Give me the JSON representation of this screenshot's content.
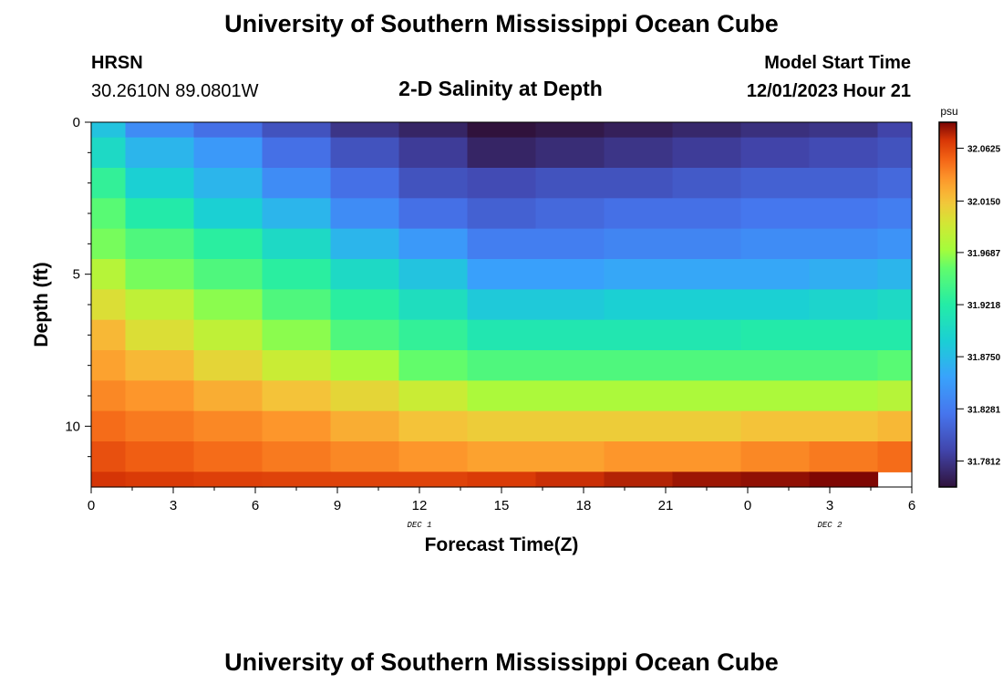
{
  "header": {
    "title": "University of Southern Mississippi Ocean Cube",
    "station": "HRSN",
    "coords": "30.2610N  89.0801W",
    "subtitle": "2-D Salinity at Depth",
    "model_label": "Model Start Time",
    "model_time": "12/01/2023 Hour 21"
  },
  "footer": {
    "title": "University of Southern Mississippi Ocean Cube"
  },
  "chart_data": {
    "type": "heatmap",
    "xlabel": "Forecast Time(Z)",
    "ylabel": "Depth (ft)",
    "x_ticks": [
      "0",
      "3",
      "6",
      "9",
      "12",
      "15",
      "18",
      "21",
      "0",
      "3",
      "6"
    ],
    "y_ticks": [
      "0",
      "5",
      "10"
    ],
    "xlim": [
      0,
      30
    ],
    "ylim": [
      0,
      12
    ],
    "y_inverted": true,
    "date_labels": [
      {
        "text": "DEC 1",
        "x": 12
      },
      {
        "text": "DEC 2",
        "x": 27
      }
    ],
    "colorbar": {
      "unit": "psu",
      "ticks": [
        "32.0625",
        "32.0150",
        "31.9687",
        "31.9218",
        "31.8750",
        "31.8281",
        "31.7812"
      ],
      "tick_values": [
        32.0625,
        32.015,
        31.9687,
        31.9218,
        31.875,
        31.8281,
        31.7812
      ],
      "range": [
        31.7578,
        32.0859
      ]
    },
    "x_edges": [
      0,
      1.25,
      3.75,
      6.25,
      8.75,
      11.25,
      13.75,
      16.25,
      18.75,
      21.25,
      23.75,
      26.25,
      28.75,
      30
    ],
    "depth_edges": [
      0,
      0.5,
      1.5,
      2.5,
      3.5,
      4.5,
      5.5,
      6.5,
      7.5,
      8.5,
      9.5,
      10.5,
      11.5,
      12
    ],
    "values": [
      [
        31.88,
        31.84,
        31.82,
        31.8,
        31.78,
        31.77,
        31.758,
        31.762,
        31.767,
        31.772,
        31.777,
        31.78,
        31.79
      ],
      [
        31.9,
        31.87,
        31.85,
        31.82,
        31.8,
        31.785,
        31.77,
        31.775,
        31.78,
        31.785,
        31.79,
        31.795,
        31.8
      ],
      [
        31.93,
        31.89,
        31.87,
        31.84,
        31.82,
        31.8,
        31.795,
        31.8,
        31.8,
        31.805,
        31.81,
        31.81,
        31.815
      ],
      [
        31.95,
        31.92,
        31.89,
        31.87,
        31.84,
        31.82,
        31.81,
        31.815,
        31.82,
        31.82,
        31.825,
        31.825,
        31.83
      ],
      [
        31.96,
        31.945,
        31.925,
        31.9,
        31.87,
        31.85,
        31.83,
        31.83,
        31.835,
        31.835,
        31.84,
        31.84,
        31.845
      ],
      [
        31.98,
        31.96,
        31.945,
        31.925,
        31.9,
        31.88,
        31.855,
        31.855,
        31.86,
        31.86,
        31.86,
        31.865,
        31.87
      ],
      [
        32.0,
        31.985,
        31.965,
        31.945,
        31.925,
        31.905,
        31.885,
        31.885,
        31.89,
        31.89,
        31.89,
        31.895,
        31.9
      ],
      [
        32.02,
        32.0,
        31.985,
        31.965,
        31.945,
        31.93,
        31.915,
        31.915,
        31.915,
        31.915,
        31.92,
        31.92,
        31.92
      ],
      [
        32.03,
        32.02,
        32.005,
        31.99,
        31.975,
        31.955,
        31.945,
        31.945,
        31.945,
        31.945,
        31.945,
        31.945,
        31.95
      ],
      [
        32.04,
        32.035,
        32.025,
        32.015,
        32.005,
        31.99,
        31.975,
        31.975,
        31.975,
        31.975,
        31.975,
        31.975,
        31.98
      ],
      [
        32.05,
        32.045,
        32.04,
        32.035,
        32.025,
        32.015,
        32.01,
        32.01,
        32.01,
        32.01,
        32.015,
        32.015,
        32.02
      ],
      [
        32.06,
        32.055,
        32.05,
        32.045,
        32.04,
        32.035,
        32.03,
        32.03,
        32.035,
        32.035,
        32.04,
        32.045,
        32.05
      ],
      [
        32.07,
        32.068,
        32.066,
        32.065,
        32.065,
        32.065,
        32.068,
        32.072,
        32.076,
        32.08,
        32.082,
        32.085,
        null
      ]
    ]
  }
}
